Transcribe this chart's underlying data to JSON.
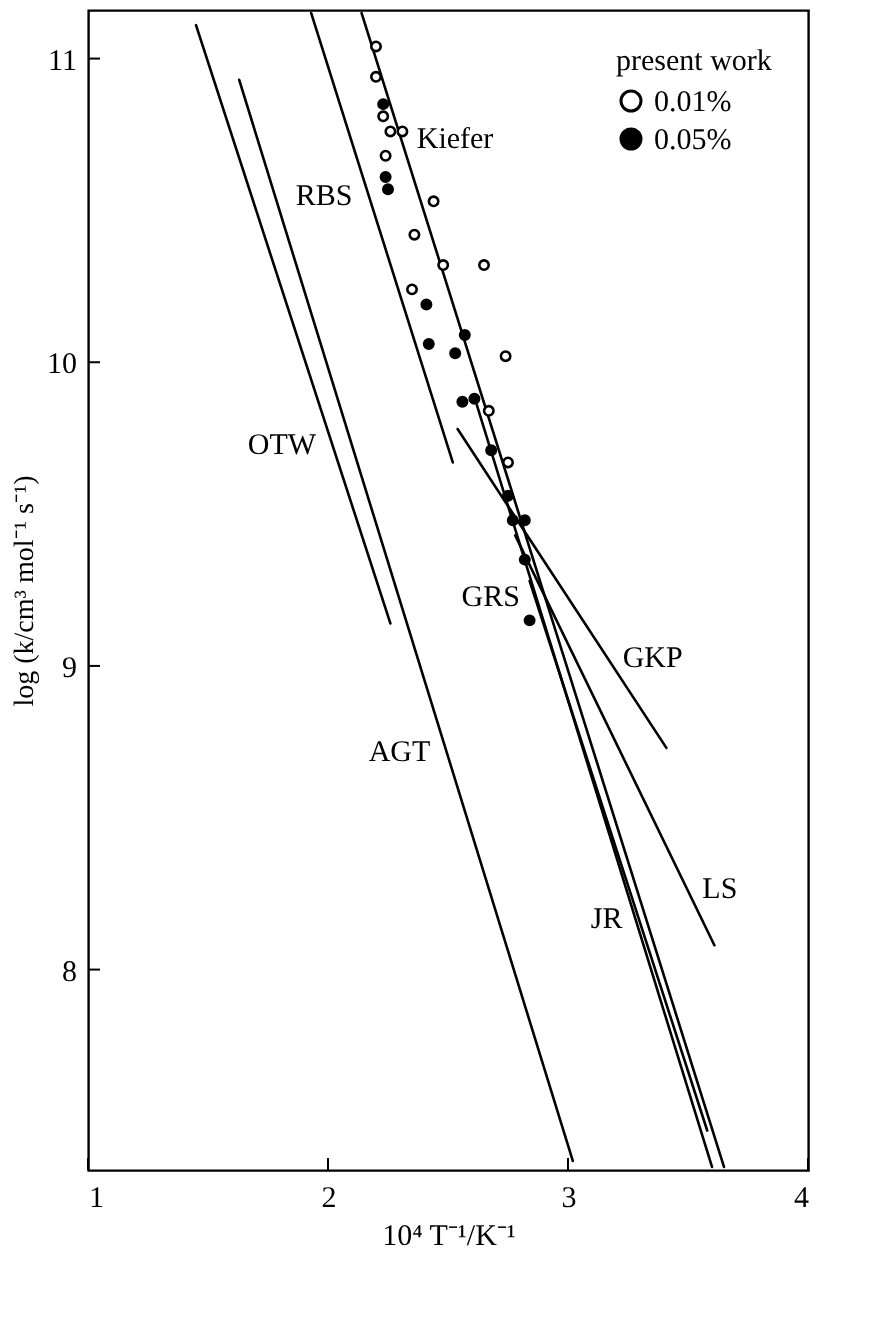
{
  "chart_data": {
    "type": "line",
    "xlabel": "10⁴ T⁻¹/K⁻¹",
    "ylabel": "log (k/cm³ mol⁻¹ s⁻¹)",
    "legend_title": "present work",
    "legend": "top right",
    "grid": false,
    "xlim": [
      1,
      4
    ],
    "ylim": [
      7.34,
      11.16
    ],
    "xticks": [
      1,
      2,
      3,
      4
    ],
    "yticks": [
      8,
      9,
      10,
      11
    ],
    "series": [
      {
        "type": "scatter",
        "marker": "circle",
        "name": "0.01%",
        "color": "#000000",
        "x": [
          2.2,
          2.2,
          2.23,
          2.26,
          2.31,
          2.24,
          2.44,
          2.36,
          2.48,
          2.65,
          2.35,
          2.74,
          2.67,
          2.75
        ],
        "values": [
          11.04,
          10.94,
          10.81,
          10.76,
          10.76,
          10.68,
          10.53,
          10.42,
          10.32,
          10.32,
          10.24,
          10.02,
          9.84,
          9.67
        ]
      },
      {
        "type": "scatter",
        "marker": "circle",
        "name": "0.05%",
        "color": "#000000",
        "x": [
          2.23,
          2.24,
          2.25,
          2.41,
          2.57,
          2.42,
          2.53,
          2.56,
          2.61,
          2.68,
          2.75,
          2.77,
          2.82,
          2.82,
          2.84
        ],
        "values": [
          10.85,
          10.61,
          10.57,
          10.19,
          10.09,
          10.06,
          10.03,
          9.87,
          9.88,
          9.71,
          9.56,
          9.48,
          9.48,
          9.35,
          9.15
        ]
      },
      {
        "color": "#000000",
        "x": [
          1.45,
          2.26
        ],
        "values": [
          11.11,
          9.14
        ]
      },
      {
        "color": "#000000",
        "x": [
          1.63,
          3.02
        ],
        "values": [
          10.93,
          7.37
        ]
      },
      {
        "color": "#000000",
        "x": [
          1.93,
          2.52
        ],
        "values": [
          11.15,
          9.67
        ]
      },
      {
        "color": "#000000",
        "x": [
          2.14,
          3.65
        ],
        "values": [
          11.15,
          7.35
        ]
      },
      {
        "color": "#000000",
        "x": [
          2.62,
          3.6
        ],
        "values": [
          9.86,
          7.35
        ]
      },
      {
        "color": "#000000",
        "x": [
          2.84,
          3.58
        ],
        "values": [
          9.28,
          7.47
        ]
      },
      {
        "color": "#000000",
        "x": [
          2.54,
          3.41
        ],
        "values": [
          9.78,
          8.73
        ]
      },
      {
        "color": "#000000",
        "x": [
          2.78,
          3.61
        ],
        "values": [
          9.43,
          8.08
        ]
      }
    ],
    "annotations": [
      {
        "text": "Kiefer",
        "x": 2.303,
        "y": 10.74
      },
      {
        "text": "RBS",
        "x": 2.169,
        "y": 10.55
      },
      {
        "text": "OTW",
        "x": 2.017,
        "y": 9.73
      },
      {
        "text": "GRS",
        "x": 2.866,
        "y": 9.23
      },
      {
        "text": "GKP",
        "x": 3.161,
        "y": 9.03
      },
      {
        "text": "AGT",
        "x": 2.493,
        "y": 8.72
      },
      {
        "text": "LS",
        "x": 3.493,
        "y": 8.27
      },
      {
        "text": "JR",
        "x": 3.294,
        "y": 8.17
      }
    ]
  }
}
